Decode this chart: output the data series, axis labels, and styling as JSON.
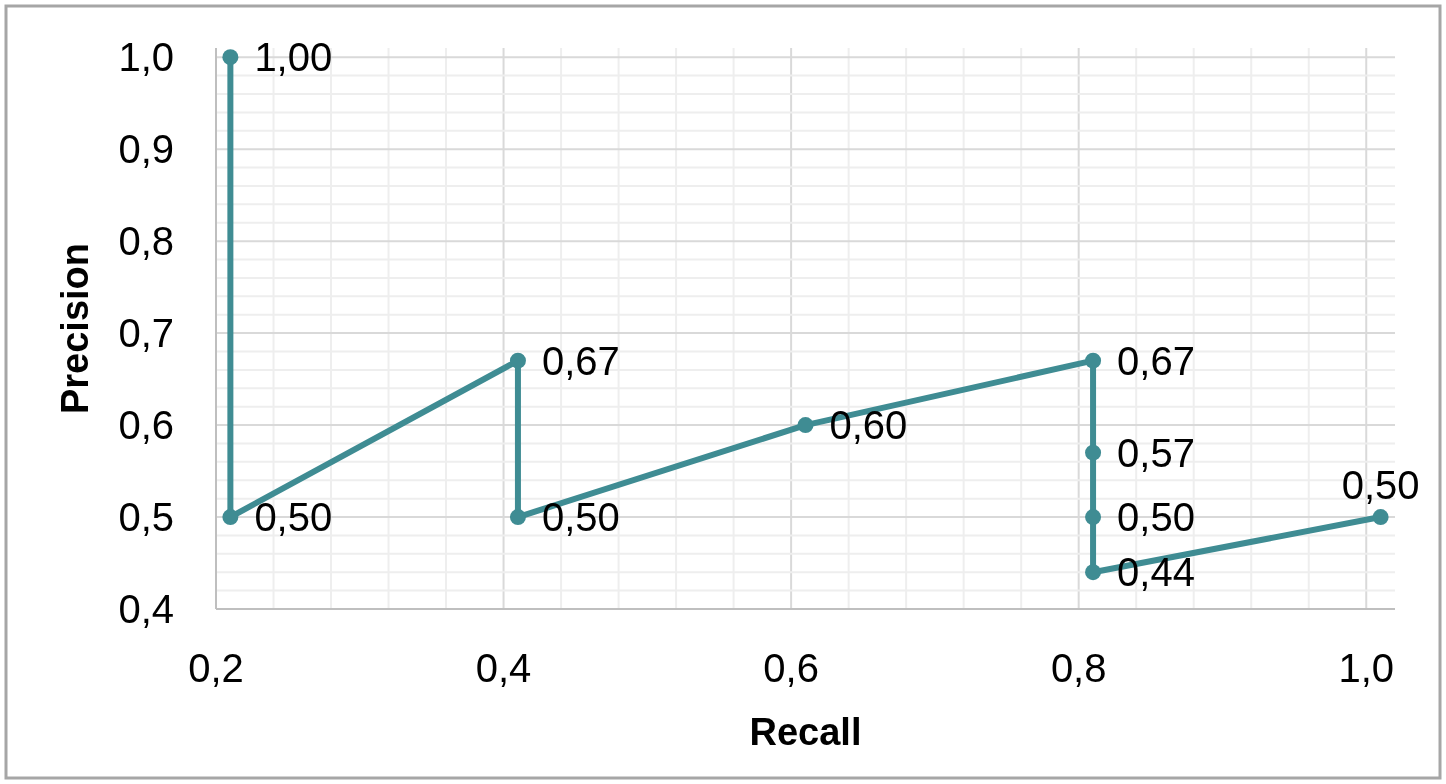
{
  "chart_data": {
    "type": "line",
    "xlabel": "Recall",
    "ylabel": "Precision",
    "x": [
      0.21,
      0.21,
      0.41,
      0.41,
      0.61,
      0.81,
      0.81,
      0.81,
      0.81,
      1.01
    ],
    "series": [
      {
        "color": "#3f8c93",
        "values": [
          1.0,
          0.5,
          0.67,
          0.5,
          0.6,
          0.67,
          0.57,
          0.5,
          0.44,
          0.5
        ],
        "value_labels": [
          "1,00",
          "0,50",
          "0,67",
          "0,50",
          "0,60",
          "0,67",
          "0,57",
          "0,50",
          "0,44",
          "0,50"
        ]
      }
    ],
    "marker": "circle",
    "line_style": "solid",
    "grid": true,
    "xlim": [
      0.2,
      1.02
    ],
    "ylim": [
      0.4,
      1.01
    ],
    "xticks": [
      {
        "value": 0.2,
        "label": "0,2"
      },
      {
        "value": 0.24,
        "label": null
      },
      {
        "value": 0.28,
        "label": null
      },
      {
        "value": 0.32,
        "label": null
      },
      {
        "value": 0.36,
        "label": null
      },
      {
        "value": 0.4,
        "label": "0,4"
      },
      {
        "value": 0.44,
        "label": null
      },
      {
        "value": 0.48,
        "label": null
      },
      {
        "value": 0.52,
        "label": null
      },
      {
        "value": 0.56,
        "label": null
      },
      {
        "value": 0.6,
        "label": "0,6"
      },
      {
        "value": 0.64,
        "label": null
      },
      {
        "value": 0.68,
        "label": null
      },
      {
        "value": 0.72,
        "label": null
      },
      {
        "value": 0.76,
        "label": null
      },
      {
        "value": 0.8,
        "label": "0,8"
      },
      {
        "value": 0.84,
        "label": null
      },
      {
        "value": 0.88,
        "label": null
      },
      {
        "value": 0.92,
        "label": null
      },
      {
        "value": 0.96,
        "label": null
      },
      {
        "value": 1.0,
        "label": "1,0"
      }
    ],
    "yticks": [
      {
        "value": 0.4,
        "label": "0,4"
      },
      {
        "value": 0.42,
        "label": null
      },
      {
        "value": 0.44,
        "label": null
      },
      {
        "value": 0.46,
        "label": null
      },
      {
        "value": 0.48,
        "label": null
      },
      {
        "value": 0.5,
        "label": "0,5"
      },
      {
        "value": 0.52,
        "label": null
      },
      {
        "value": 0.54,
        "label": null
      },
      {
        "value": 0.56,
        "label": null
      },
      {
        "value": 0.58,
        "label": null
      },
      {
        "value": 0.6,
        "label": "0,6"
      },
      {
        "value": 0.62,
        "label": null
      },
      {
        "value": 0.64,
        "label": null
      },
      {
        "value": 0.66,
        "label": null
      },
      {
        "value": 0.68,
        "label": null
      },
      {
        "value": 0.7,
        "label": "0,7"
      },
      {
        "value": 0.72,
        "label": null
      },
      {
        "value": 0.74,
        "label": null
      },
      {
        "value": 0.76,
        "label": null
      },
      {
        "value": 0.78,
        "label": null
      },
      {
        "value": 0.8,
        "label": "0,8"
      },
      {
        "value": 0.82,
        "label": null
      },
      {
        "value": 0.84,
        "label": null
      },
      {
        "value": 0.86,
        "label": null
      },
      {
        "value": 0.88,
        "label": null
      },
      {
        "value": 0.9,
        "label": "0,9"
      },
      {
        "value": 0.92,
        "label": null
      },
      {
        "value": 0.94,
        "label": null
      },
      {
        "value": 0.96,
        "label": null
      },
      {
        "value": 0.98,
        "label": null
      },
      {
        "value": 1.0,
        "label": "1,0"
      }
    ]
  }
}
